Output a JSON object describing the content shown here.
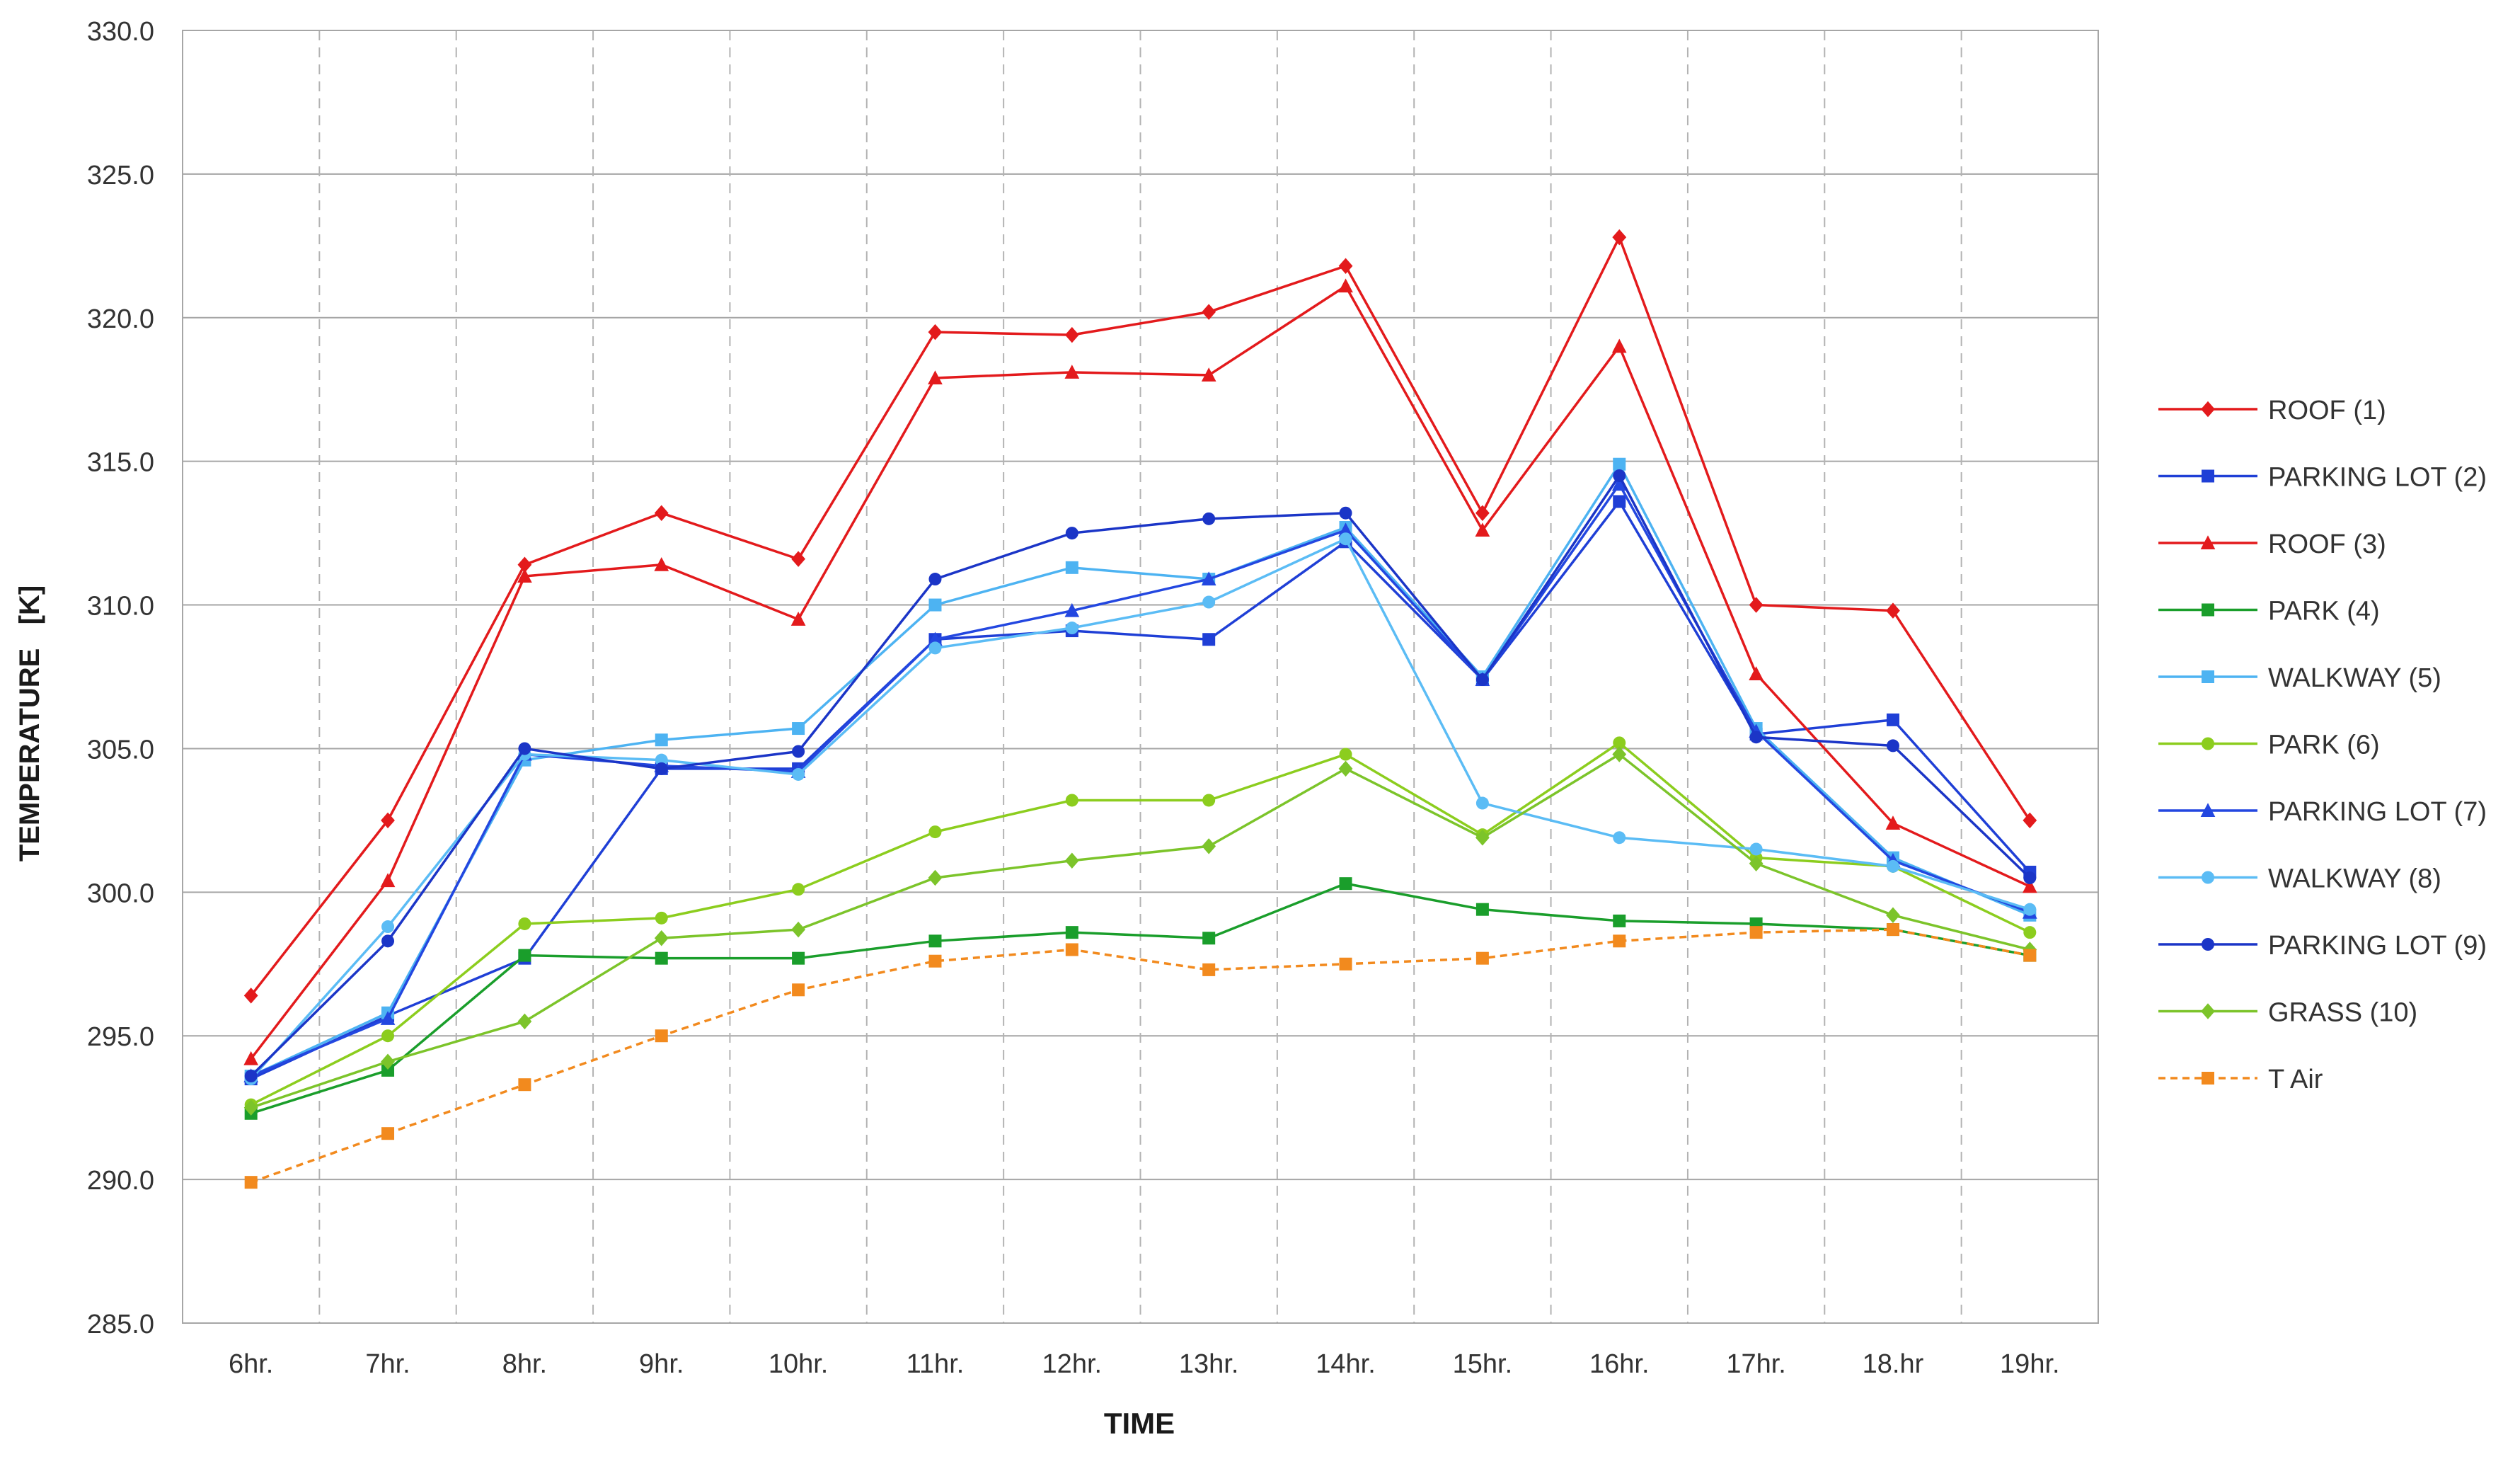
{
  "chart_data": {
    "type": "line",
    "title": "",
    "xlabel": "TIME",
    "ylabel": "TEMPERATURE   [K]",
    "ylim": [
      285.0,
      330.0
    ],
    "yticks": [
      285.0,
      290.0,
      295.0,
      300.0,
      305.0,
      310.0,
      315.0,
      320.0,
      325.0,
      330.0
    ],
    "ytick_labels": [
      "285.0",
      "290.0",
      "295.0",
      "300.0",
      "305.0",
      "310.0",
      "315.0",
      "320.0",
      "325.0",
      "330.0"
    ],
    "categories": [
      "6hr.",
      "7hr.",
      "8hr.",
      "9hr.",
      "10hr.",
      "11hr.",
      "12hr.",
      "13hr.",
      "14hr.",
      "15hr.",
      "16hr.",
      "17hr.",
      "18.hr",
      "19hr."
    ],
    "grid": {
      "horizontal": "solid",
      "vertical": "dashed"
    },
    "legend_position": "right",
    "series": [
      {
        "name": "ROOF (1)",
        "color": "#e31a1c",
        "marker": "diamond",
        "dashed": false,
        "values": [
          296.4,
          302.5,
          311.4,
          313.2,
          311.6,
          319.5,
          319.4,
          320.2,
          321.8,
          313.2,
          322.8,
          310.0,
          309.8,
          302.5
        ]
      },
      {
        "name": "PARKING LOT (2)",
        "color": "#1f3fd6",
        "marker": "square",
        "dashed": false,
        "values": [
          293.5,
          295.7,
          297.7,
          304.3,
          304.3,
          308.8,
          309.1,
          308.8,
          312.2,
          307.4,
          313.6,
          305.5,
          306.0,
          300.7
        ]
      },
      {
        "name": "ROOF (3)",
        "color": "#e31a1c",
        "marker": "triangle",
        "dashed": false,
        "values": [
          294.2,
          300.4,
          311.0,
          311.4,
          309.5,
          317.9,
          318.1,
          318.0,
          321.1,
          312.6,
          319.0,
          307.6,
          302.4,
          300.2
        ]
      },
      {
        "name": "PARK (4)",
        "color": "#1a9e2b",
        "marker": "square",
        "dashed": false,
        "values": [
          292.3,
          293.8,
          297.8,
          297.7,
          297.7,
          298.3,
          298.6,
          298.4,
          300.3,
          299.4,
          299.0,
          298.9,
          298.7,
          297.8
        ]
      },
      {
        "name": "WALKWAY (5)",
        "color": "#4db3f2",
        "marker": "square",
        "dashed": false,
        "values": [
          293.6,
          295.8,
          304.6,
          305.3,
          305.7,
          310.0,
          311.3,
          310.9,
          312.7,
          307.5,
          314.9,
          305.7,
          301.2,
          299.2
        ]
      },
      {
        "name": "PARK (6)",
        "color": "#8ccd1e",
        "marker": "circle",
        "dashed": false,
        "values": [
          292.6,
          295.0,
          298.9,
          299.1,
          300.1,
          302.1,
          303.2,
          303.2,
          304.8,
          302.0,
          305.2,
          301.2,
          300.9,
          298.6
        ]
      },
      {
        "name": "PARKING LOT (7)",
        "color": "#2347e0",
        "marker": "triangle",
        "dashed": false,
        "values": [
          293.6,
          295.6,
          304.8,
          304.4,
          304.2,
          308.8,
          309.8,
          310.9,
          312.6,
          307.4,
          314.2,
          305.6,
          301.1,
          299.3
        ]
      },
      {
        "name": "WALKWAY (8)",
        "color": "#5bbcf5",
        "marker": "circle",
        "dashed": false,
        "values": [
          293.5,
          298.8,
          304.8,
          304.6,
          304.1,
          308.5,
          309.2,
          310.1,
          312.3,
          303.1,
          301.9,
          301.5,
          300.9,
          299.4
        ]
      },
      {
        "name": "PARKING LOT (9)",
        "color": "#1b35c7",
        "marker": "circle",
        "dashed": false,
        "values": [
          293.6,
          298.3,
          305.0,
          304.3,
          304.9,
          310.9,
          312.5,
          313.0,
          313.2,
          307.4,
          314.5,
          305.4,
          305.1,
          300.5
        ]
      },
      {
        "name": "GRASS (10)",
        "color": "#7cc42a",
        "marker": "diamond",
        "dashed": false,
        "values": [
          292.5,
          294.1,
          295.5,
          298.4,
          298.7,
          300.5,
          301.1,
          301.6,
          304.3,
          301.9,
          304.8,
          301.0,
          299.2,
          298.0
        ]
      },
      {
        "name": "T Air",
        "color": "#f28a1e",
        "marker": "square",
        "dashed": true,
        "values": [
          289.9,
          291.6,
          293.3,
          295.0,
          296.6,
          297.6,
          298.0,
          297.3,
          297.5,
          297.7,
          298.3,
          298.6,
          298.7,
          297.8
        ]
      }
    ]
  }
}
